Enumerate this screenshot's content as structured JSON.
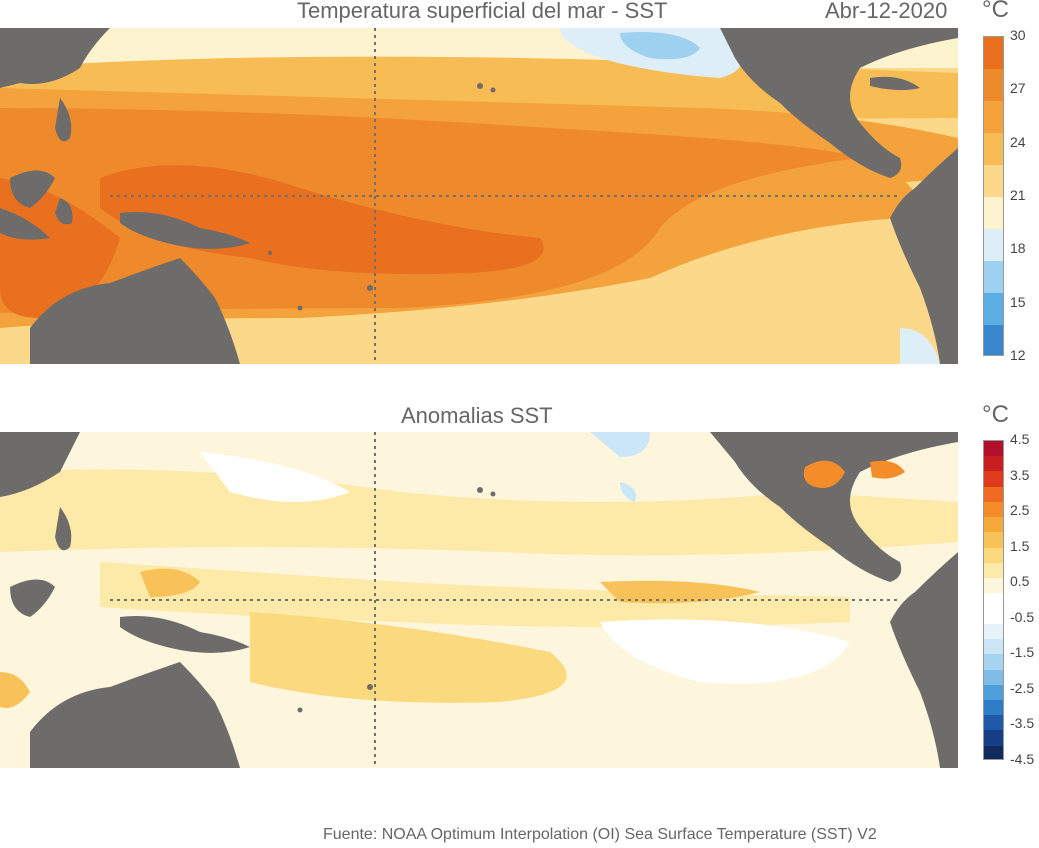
{
  "top_panel": {
    "title": "Temperatura superficial del mar - SST",
    "date": "Abr-12-2020",
    "unit": "°C",
    "colorbar": {
      "ticks": [
        "30",
        "27",
        "24",
        "21",
        "18",
        "15",
        "12"
      ],
      "colors": [
        "#e8701e",
        "#ef8a2c",
        "#f4a23c",
        "#f8bc55",
        "#fcd98a",
        "#fef3cf",
        "#ddeef8",
        "#9ed0ef",
        "#5aaee4",
        "#3a86cf"
      ]
    }
  },
  "bottom_panel": {
    "title": "Anomalias SST",
    "unit": "°C",
    "colorbar": {
      "ticks": [
        "4.5",
        "3.5",
        "2.5",
        "1.5",
        "0.5",
        "-0.5",
        "-1.5",
        "-2.5",
        "-3.5",
        "-4.5"
      ],
      "colors": [
        "#b0102a",
        "#c81e22",
        "#e03a1c",
        "#ee6a20",
        "#f48c2a",
        "#f7a83a",
        "#f9c259",
        "#fbd97e",
        "#fde9a8",
        "#fef6dc",
        "#ffffff",
        "#ffffff",
        "#e6f3fb",
        "#cbe6f7",
        "#a6d3f0",
        "#7fbde8",
        "#4f9fdc",
        "#2f7dc6",
        "#1f5aa8",
        "#163d86",
        "#102a5e"
      ]
    }
  },
  "map_colors": {
    "land": "#6e6c6b",
    "grid_line": "#707070"
  },
  "footer": {
    "source": "Fuente: NOAA Optimum Interpolation (OI) Sea Surface Temperature (SST) V2"
  }
}
